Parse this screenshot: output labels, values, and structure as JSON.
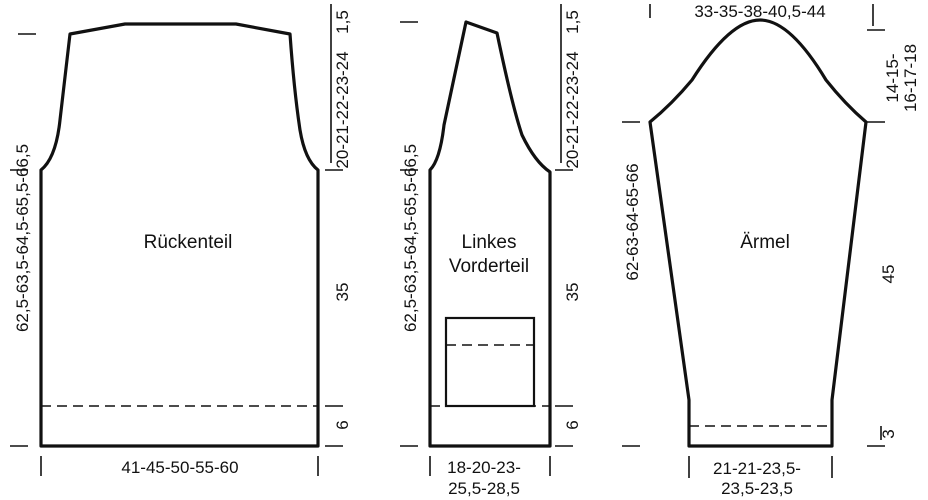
{
  "back": {
    "name": "Rückenteil",
    "width_label": "41-45-50-55-60",
    "total_length_label": "62,5-63,5-64,5-65,5-66,5",
    "armhole_label": "20-21-22-23-24",
    "shoulder_label": "1,5",
    "body_label": "35",
    "rib_label": "6"
  },
  "front": {
    "name_line1": "Linkes",
    "name_line2": "Vorderteil",
    "width_line1": "18-20-23-",
    "width_line2": "25,5-28,5",
    "total_length_label": "62,5-63,5-64,5-65,5-66,5",
    "armhole_label": "20-21-22-23-24",
    "shoulder_label": "1,5",
    "body_label": "35",
    "rib_label": "6"
  },
  "sleeve": {
    "name": "Ärmel",
    "top_label": "33-35-38-40,5-44",
    "cap_line1": "14-15-",
    "cap_line2": "16-17-18",
    "length_label": "62-63-64-65-66",
    "body_label": "45",
    "cuff_label": "3",
    "bottom_line1": "21-21-23,5-",
    "bottom_line2": "23,5-23,5"
  }
}
